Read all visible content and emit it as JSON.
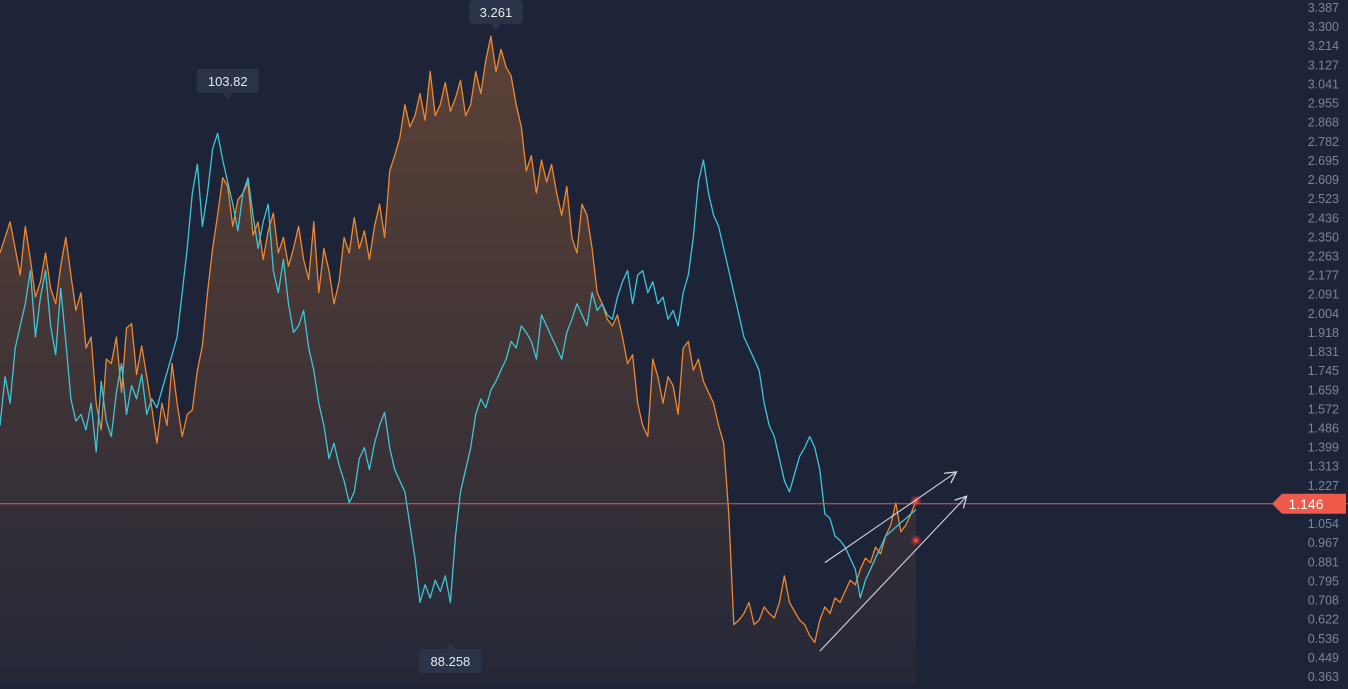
{
  "chart_data": {
    "type": "line",
    "title": "",
    "xlabel": "",
    "ylabel": "",
    "ylim": [
      0.363,
      3.387
    ],
    "y_ticks": [
      "3.387",
      "3.300",
      "3.214",
      "3.127",
      "3.041",
      "2.955",
      "2.868",
      "2.782",
      "2.695",
      "2.609",
      "2.523",
      "2.436",
      "2.350",
      "2.263",
      "2.177",
      "2.091",
      "2.004",
      "1.918",
      "1.831",
      "1.745",
      "1.659",
      "1.572",
      "1.486",
      "1.399",
      "1.313",
      "1.227",
      "1.140",
      "1.054",
      "0.967",
      "0.881",
      "0.795",
      "0.708",
      "0.622",
      "0.536",
      "0.449",
      "0.363"
    ],
    "current_price": {
      "value": 1.146,
      "label": "1.146"
    },
    "callouts": [
      {
        "label": "3.261",
        "series": "orange",
        "value": 3.261,
        "x_index": 98
      },
      {
        "label": "103.82",
        "series": "cyan",
        "value": 103.82,
        "x_index": 45
      },
      {
        "label": "88.258",
        "series": "cyan",
        "value": 88.258,
        "x_index": 89
      }
    ],
    "x_points": 182,
    "series": [
      {
        "color": "#f0872f",
        "values": [
          2.28,
          2.35,
          2.42,
          2.3,
          2.18,
          2.4,
          2.25,
          2.08,
          2.15,
          2.28,
          2.12,
          2.05,
          2.22,
          2.35,
          2.18,
          2.02,
          2.1,
          1.85,
          1.9,
          1.6,
          1.48,
          1.8,
          1.78,
          1.9,
          1.65,
          1.94,
          1.96,
          1.73,
          1.86,
          1.72,
          1.58,
          1.42,
          1.6,
          1.5,
          1.78,
          1.6,
          1.45,
          1.55,
          1.57,
          1.75,
          1.86,
          2.1,
          2.3,
          2.45,
          2.62,
          2.58,
          2.4,
          2.52,
          2.55,
          2.6,
          2.36,
          2.42,
          2.25,
          2.38,
          2.46,
          2.28,
          2.35,
          2.22,
          2.3,
          2.4,
          2.25,
          2.16,
          2.42,
          2.1,
          2.3,
          2.2,
          2.05,
          2.15,
          2.35,
          2.28,
          2.44,
          2.3,
          2.38,
          2.25,
          2.4,
          2.5,
          2.35,
          2.65,
          2.72,
          2.8,
          2.95,
          2.85,
          2.9,
          3.0,
          2.88,
          3.1,
          2.9,
          2.95,
          3.05,
          2.92,
          2.98,
          3.06,
          2.9,
          2.95,
          3.1,
          3.0,
          3.15,
          3.26,
          3.1,
          3.2,
          3.12,
          3.08,
          2.95,
          2.85,
          2.65,
          2.72,
          2.55,
          2.7,
          2.6,
          2.68,
          2.55,
          2.45,
          2.58,
          2.35,
          2.28,
          2.5,
          2.45,
          2.3,
          2.1,
          2.05,
          1.98,
          1.95,
          2.0,
          1.9,
          1.78,
          1.82,
          1.6,
          1.5,
          1.45,
          1.8,
          1.72,
          1.6,
          1.72,
          1.68,
          1.55,
          1.85,
          1.88,
          1.75,
          1.8,
          1.7,
          1.65,
          1.6,
          1.5,
          1.42,
          1.1,
          0.6,
          0.62,
          0.65,
          0.7,
          0.6,
          0.62,
          0.68,
          0.65,
          0.63,
          0.7,
          0.82,
          0.7,
          0.66,
          0.62,
          0.6,
          0.55,
          0.52,
          0.62,
          0.68,
          0.65,
          0.72,
          0.7,
          0.75,
          0.8,
          0.78,
          0.85,
          0.9,
          0.88,
          0.95,
          0.92,
          1.0,
          1.05,
          1.15,
          1.02,
          1.05,
          1.1,
          1.16
        ]
      },
      {
        "color": "#3fc5d6",
        "values": [
          1.5,
          1.72,
          1.6,
          1.85,
          1.95,
          2.05,
          2.2,
          1.9,
          2.08,
          2.2,
          1.95,
          1.82,
          2.12,
          1.88,
          1.62,
          1.52,
          1.55,
          1.48,
          1.6,
          1.38,
          1.7,
          1.52,
          1.45,
          1.65,
          1.78,
          1.55,
          1.68,
          1.62,
          1.73,
          1.55,
          1.62,
          1.58,
          1.66,
          1.74,
          1.82,
          1.9,
          2.1,
          2.3,
          2.55,
          2.68,
          2.4,
          2.55,
          2.75,
          2.82,
          2.7,
          2.6,
          2.5,
          2.38,
          2.55,
          2.62,
          2.45,
          2.3,
          2.42,
          2.5,
          2.2,
          2.1,
          2.25,
          2.05,
          1.92,
          1.95,
          2.02,
          1.85,
          1.75,
          1.6,
          1.5,
          1.35,
          1.42,
          1.32,
          1.25,
          1.15,
          1.2,
          1.35,
          1.4,
          1.3,
          1.42,
          1.5,
          1.56,
          1.4,
          1.3,
          1.25,
          1.2,
          1.05,
          0.9,
          0.7,
          0.78,
          0.72,
          0.8,
          0.75,
          0.82,
          0.7,
          1.0,
          1.2,
          1.3,
          1.4,
          1.55,
          1.62,
          1.58,
          1.66,
          1.7,
          1.75,
          1.8,
          1.88,
          1.85,
          1.95,
          1.92,
          1.88,
          1.8,
          2.0,
          1.95,
          1.9,
          1.85,
          1.8,
          1.92,
          1.98,
          2.05,
          2.0,
          1.95,
          2.1,
          2.02,
          2.05,
          2.0,
          1.98,
          2.08,
          2.15,
          2.2,
          2.05,
          2.18,
          2.2,
          2.1,
          2.15,
          2.05,
          2.08,
          1.98,
          2.02,
          1.95,
          2.1,
          2.18,
          2.35,
          2.6,
          2.7,
          2.55,
          2.45,
          2.4,
          2.3,
          2.2,
          2.1,
          2.0,
          1.9,
          1.85,
          1.8,
          1.75,
          1.6,
          1.5,
          1.45,
          1.35,
          1.25,
          1.2,
          1.28,
          1.36,
          1.4,
          1.45,
          1.4,
          1.3,
          1.1,
          1.08,
          1.0,
          0.98,
          0.95,
          0.9,
          0.85,
          0.72,
          0.8,
          0.85,
          0.9,
          0.95,
          1.0,
          1.02,
          1.04,
          1.06,
          1.08,
          1.1,
          1.12
        ]
      }
    ],
    "annotations": [
      {
        "type": "arrow",
        "from": [
          163,
          0.88
        ],
        "to": [
          189,
          1.29
        ]
      },
      {
        "type": "arrow",
        "from": [
          162,
          0.48
        ],
        "to": [
          191,
          1.18
        ]
      }
    ]
  }
}
